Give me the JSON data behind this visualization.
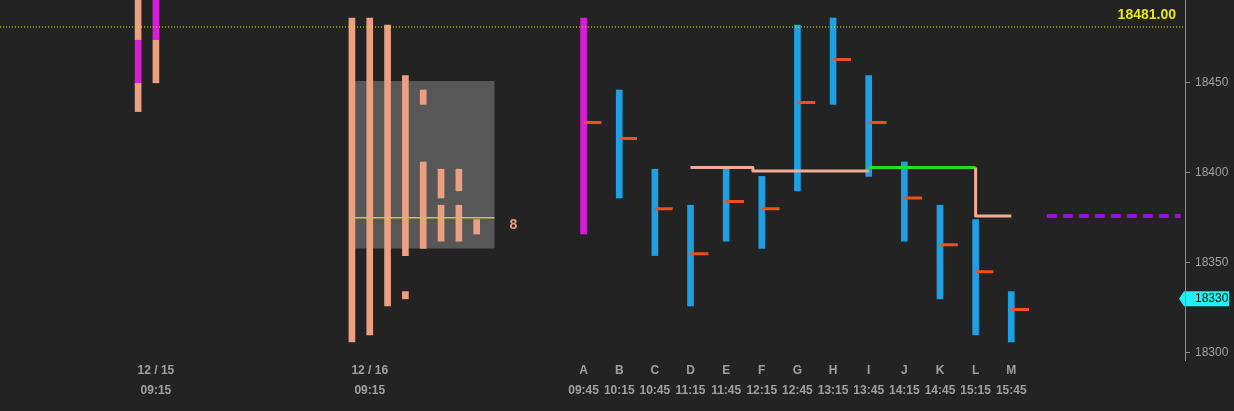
{
  "chart_data": {
    "type": "bar",
    "categories": [
      null,
      null,
      null,
      null,
      null,
      null,
      null,
      null,
      null,
      null,
      null,
      null,
      null,
      null,
      null,
      null,
      null,
      "12 / 15\n09:15",
      null,
      null,
      null,
      null,
      null,
      null,
      null,
      null,
      null,
      null,
      null,
      null,
      null,
      null,
      null,
      null,
      null,
      null,
      null,
      null,
      null,
      null,
      null,
      "12 / 16\n09:15",
      null,
      null,
      null,
      null,
      null,
      null,
      null,
      null,
      null,
      null,
      null,
      null,
      null,
      null,
      null,
      null,
      null,
      null,
      null,
      null,
      null,
      null,
      null,
      "A\n09:45",
      null,
      null,
      null,
      "B\n10:15",
      null,
      null,
      null,
      "C\n10:45",
      null,
      null,
      null,
      "D\n11:15",
      null,
      null,
      null,
      "E\n11:45",
      null,
      null,
      null,
      "F\n12:15",
      null,
      null,
      null,
      "G\n12:45",
      null,
      null,
      null,
      "H\n13:15",
      null,
      null,
      null,
      "I\n13:45",
      null,
      null,
      null,
      "J\n14:15",
      null,
      null,
      null,
      "K\n14:45",
      null,
      null,
      null,
      "L\n15:15",
      null,
      null,
      null,
      "M\n15:45",
      null,
      null,
      null,
      null,
      null,
      null,
      null,
      null,
      null,
      null,
      null,
      null,
      null,
      null,
      null,
      null,
      null,
      null,
      null
    ],
    "ylim": [
      18296,
      18496
    ],
    "yticks": [
      18300,
      18330,
      18350,
      18400,
      18450
    ],
    "series": [
      {
        "values": [
          null,
          null,
          null,
          null,
          null,
          null,
          null,
          null,
          null,
          null,
          null,
          null,
          null,
          null,
          null,
          22,
          null,
          22,
          null,
          null,
          null,
          null,
          null,
          null,
          null,
          null,
          null,
          null,
          null,
          null,
          null,
          null,
          null,
          null,
          null,
          null,
          null,
          null,
          null,
          180,
          null,
          176,
          null,
          156,
          null,
          100,
          null,
          8,
          null,
          16,
          null,
          12,
          null,
          8,
          null,
          null,
          null,
          null,
          null,
          null,
          null,
          null,
          null,
          null,
          null,
          120,
          null,
          null,
          null,
          60,
          null,
          null,
          null,
          48,
          null,
          null,
          null,
          56,
          null,
          null,
          null,
          40,
          null,
          null,
          null,
          40,
          null,
          null,
          null,
          92,
          null,
          null,
          null,
          48,
          null,
          null,
          null,
          56,
          null,
          null,
          null,
          44,
          null,
          null,
          null,
          52,
          null,
          null,
          null,
          64,
          null,
          null,
          null,
          28,
          null,
          null,
          null,
          null,
          null,
          null,
          null,
          null,
          null,
          null,
          null,
          null,
          null,
          null,
          null,
          null,
          null,
          null,
          null
        ],
        "base": [
          null,
          null,
          null,
          null,
          null,
          null,
          null,
          null,
          null,
          null,
          null,
          null,
          null,
          null,
          null,
          18474,
          null,
          18474,
          null,
          null,
          null,
          null,
          null,
          null,
          null,
          null,
          null,
          null,
          null,
          null,
          null,
          null,
          null,
          null,
          null,
          null,
          null,
          null,
          null,
          18306,
          null,
          18310,
          null,
          18326,
          null,
          18354,
          null,
          18438,
          null,
          18386,
          null,
          18390,
          null,
          18366,
          null,
          null,
          null,
          null,
          null,
          null,
          null,
          null,
          null,
          null,
          null,
          18366,
          null,
          null,
          null,
          18386,
          null,
          null,
          null,
          18354,
          null,
          null,
          null,
          18326,
          null,
          null,
          null,
          18362,
          null,
          null,
          null,
          18358,
          null,
          null,
          null,
          18390,
          null,
          null,
          null,
          18438,
          null,
          null,
          null,
          18398,
          null,
          null,
          null,
          18362,
          null,
          null,
          null,
          18330,
          null,
          null,
          null,
          18310,
          null,
          null,
          null,
          18306,
          null,
          null,
          null,
          null,
          null,
          null,
          null,
          null,
          null,
          null,
          null,
          null,
          null,
          null,
          null,
          null,
          null,
          null,
          null
        ],
        "colors": [
          null,
          null,
          null,
          null,
          null,
          null,
          null,
          null,
          null,
          null,
          null,
          null,
          null,
          null,
          null,
          "#eca082",
          null,
          "#d81cd8",
          null,
          null,
          null,
          null,
          null,
          null,
          null,
          null,
          null,
          null,
          null,
          null,
          null,
          null,
          null,
          null,
          null,
          null,
          null,
          null,
          null,
          "#eca082",
          null,
          "#eca082",
          null,
          "#eca082",
          null,
          "#eca082",
          null,
          "#eca082",
          null,
          "#eca082",
          null,
          "#eca082",
          null,
          "#eca082",
          null,
          null,
          null,
          null,
          null,
          null,
          null,
          null,
          null,
          null,
          null,
          "#d81cd8",
          null,
          null,
          null,
          "#1ea0e2",
          null,
          null,
          null,
          "#1ea0e2",
          null,
          null,
          null,
          "#1ea0e2",
          null,
          null,
          null,
          "#1ea0e2",
          null,
          null,
          null,
          "#1ea0e2",
          null,
          null,
          null,
          "#1ea0e2",
          null,
          null,
          null,
          "#1ea0e2",
          null,
          null,
          null,
          "#1ea0e2",
          null,
          null,
          null,
          "#1ea0e2",
          null,
          null,
          null,
          "#1ea0e2",
          null,
          null,
          null,
          "#1ea0e2",
          null,
          null,
          null,
          "#1ea0e2",
          null,
          null,
          null,
          null,
          null,
          null,
          null,
          null,
          null,
          null,
          null,
          null,
          null,
          null,
          null,
          null,
          null,
          null,
          null
        ]
      },
      {
        "values": [
          null,
          null,
          null,
          null,
          null,
          null,
          null,
          null,
          null,
          null,
          null,
          null,
          null,
          null,
          null,
          24,
          null,
          24,
          null,
          null,
          null,
          null,
          null,
          null,
          null,
          null,
          null,
          null,
          null,
          null,
          null,
          null,
          null,
          null,
          null,
          null,
          null,
          null,
          null,
          null,
          null,
          null,
          null,
          null,
          null,
          4,
          null,
          48,
          null,
          20,
          null,
          20,
          null,
          null,
          null,
          null,
          null,
          null,
          null,
          null,
          null,
          null,
          null,
          null,
          null,
          null,
          null,
          null,
          null,
          null,
          null,
          null,
          null,
          null,
          null,
          null,
          null,
          null,
          null,
          null,
          null,
          null,
          null,
          null,
          null,
          null,
          null,
          null,
          null,
          null,
          null,
          null,
          null,
          null,
          null,
          null,
          null,
          null,
          null,
          null,
          null,
          null,
          null,
          null,
          null,
          null,
          null,
          null,
          null,
          null,
          null,
          null,
          null,
          null,
          null,
          null,
          null,
          null,
          null,
          null,
          null,
          null,
          null,
          null,
          null,
          null,
          null,
          null,
          null,
          null,
          null,
          null,
          null
        ],
        "base": [
          null,
          null,
          null,
          null,
          null,
          null,
          null,
          null,
          null,
          null,
          null,
          null,
          null,
          null,
          null,
          18450,
          null,
          18450,
          null,
          null,
          null,
          null,
          null,
          null,
          null,
          null,
          null,
          null,
          null,
          null,
          null,
          null,
          null,
          null,
          null,
          null,
          null,
          null,
          null,
          null,
          null,
          null,
          null,
          null,
          null,
          18330,
          null,
          18358,
          null,
          18362,
          null,
          18362,
          null,
          null,
          null,
          null,
          null,
          null,
          null,
          null,
          null,
          null,
          null,
          null,
          null,
          null,
          null,
          null,
          null,
          null,
          null,
          null,
          null,
          null,
          null,
          null,
          null,
          null,
          null,
          null,
          null,
          null,
          null,
          null,
          null,
          null,
          null,
          null,
          null,
          null,
          null,
          null,
          null,
          null,
          null,
          null,
          null,
          null,
          null,
          null,
          null,
          null,
          null,
          null,
          null,
          null,
          null,
          null,
          null,
          null,
          null,
          null,
          null,
          null,
          null,
          null,
          null,
          null,
          null,
          null,
          null,
          null,
          null,
          null,
          null,
          null,
          null,
          null,
          null,
          null,
          null,
          null,
          null
        ],
        "colors": [
          null,
          null,
          null,
          null,
          null,
          null,
          null,
          null,
          null,
          null,
          null,
          null,
          null,
          null,
          null,
          "#d81cd8",
          null,
          "#eca082",
          null,
          null,
          null,
          null,
          null,
          null,
          null,
          null,
          null,
          null,
          null,
          null,
          null,
          null,
          null,
          null,
          null,
          null,
          null,
          null,
          null,
          null,
          null,
          null,
          null,
          null,
          null,
          "#eca082",
          null,
          "#eca082",
          null,
          "#eca082",
          null,
          "#eca082",
          null,
          null,
          null,
          null,
          null,
          null,
          null,
          null,
          null,
          null,
          null,
          null,
          null,
          null,
          null,
          null,
          null,
          null,
          null,
          null,
          null,
          null,
          null,
          null,
          null,
          null,
          null,
          null,
          null,
          null,
          null,
          null,
          null,
          null,
          null,
          null,
          null,
          null,
          null,
          null,
          null,
          null,
          null,
          null,
          null,
          null,
          null,
          null,
          null,
          null,
          null,
          null,
          null,
          null,
          null,
          null,
          null,
          null,
          null,
          null,
          null,
          null,
          null,
          null,
          null,
          null,
          null,
          null,
          null,
          null,
          null,
          null,
          null,
          null,
          null,
          null,
          null,
          null,
          null,
          null,
          null
        ]
      },
      {
        "values": [
          null,
          null,
          null,
          null,
          null,
          null,
          null,
          null,
          null,
          null,
          null,
          null,
          null,
          null,
          null,
          16,
          null,
          null,
          null,
          null,
          null,
          null,
          null,
          null,
          null,
          null,
          null,
          null,
          null,
          null,
          null,
          null,
          null,
          null,
          null,
          null,
          null,
          null,
          null,
          null,
          null,
          null,
          null,
          null,
          null,
          null,
          null,
          null,
          null,
          null,
          null,
          null,
          null,
          null,
          null,
          null,
          null,
          null,
          null,
          null,
          null,
          null,
          null,
          null,
          null,
          null,
          null,
          null,
          null,
          null,
          null,
          null,
          null,
          null,
          null,
          null,
          null,
          null,
          null,
          null,
          null,
          null,
          null,
          null,
          null,
          null,
          null,
          null,
          null,
          null,
          null,
          null,
          null,
          null,
          null,
          null,
          null,
          null,
          null,
          null,
          null,
          null,
          null,
          null,
          null,
          null,
          null,
          null,
          null,
          null,
          null,
          null,
          null,
          null,
          null,
          null,
          null,
          null,
          null,
          null,
          null,
          null,
          null,
          null,
          null,
          null,
          null,
          null,
          null,
          null,
          null,
          null,
          null
        ],
        "base": [
          null,
          null,
          null,
          null,
          null,
          null,
          null,
          null,
          null,
          null,
          null,
          null,
          null,
          null,
          null,
          18434,
          null,
          null,
          null,
          null,
          null,
          null,
          null,
          null,
          null,
          null,
          null,
          null,
          null,
          null,
          null,
          null,
          null,
          null,
          null,
          null,
          null,
          null,
          null,
          null,
          null,
          null,
          null,
          null,
          null,
          null,
          null,
          null,
          null,
          null,
          null,
          null,
          null,
          null,
          null,
          null,
          null,
          null,
          null,
          null,
          null,
          null,
          null,
          null,
          null,
          null,
          null,
          null,
          null,
          null,
          null,
          null,
          null,
          null,
          null,
          null,
          null,
          null,
          null,
          null,
          null,
          null,
          null,
          null,
          null,
          null,
          null,
          null,
          null,
          null,
          null,
          null,
          null,
          null,
          null,
          null,
          null,
          null,
          null,
          null,
          null,
          null,
          null,
          null,
          null,
          null,
          null,
          null,
          null,
          null,
          null,
          null,
          null,
          null,
          null,
          null,
          null,
          null,
          null,
          null,
          null,
          null,
          null,
          null,
          null,
          null,
          null,
          null,
          null,
          null,
          null,
          null,
          null
        ],
        "colors": [
          null,
          null,
          null,
          null,
          null,
          null,
          null,
          null,
          null,
          null,
          null,
          null,
          null,
          null,
          null,
          "#eca082",
          null,
          null,
          null,
          null,
          null,
          null,
          null,
          null,
          null,
          null,
          null,
          null,
          null,
          null,
          null,
          null,
          null,
          null,
          null,
          null,
          null,
          null,
          null,
          null,
          null,
          null,
          null,
          null,
          null,
          null,
          null,
          null,
          null,
          null,
          null,
          null,
          null,
          null,
          null,
          null,
          null,
          null,
          null,
          null,
          null,
          null,
          null,
          null,
          null,
          null,
          null,
          null,
          null,
          null,
          null,
          null,
          null,
          null,
          null,
          null,
          null,
          null,
          null,
          null,
          null,
          null,
          null,
          null,
          null,
          null,
          null,
          null,
          null,
          null,
          null,
          null,
          null,
          null,
          null,
          null,
          null,
          null,
          null,
          null,
          null,
          null,
          null,
          null,
          null,
          null,
          null,
          null,
          null,
          null,
          null,
          null,
          null,
          null,
          null,
          null,
          null,
          null,
          null,
          null,
          null,
          null,
          null,
          null,
          null,
          null,
          null,
          null,
          null,
          null,
          null,
          null,
          null
        ]
      },
      {
        "type": "line",
        "color": "#f0501a",
        "values": [
          null,
          null,
          null,
          null,
          null,
          null,
          null,
          null,
          null,
          null,
          null,
          null,
          null,
          null,
          null,
          null,
          null,
          null,
          null,
          null,
          null,
          null,
          null,
          null,
          null,
          null,
          null,
          null,
          null,
          null,
          null,
          null,
          null,
          null,
          null,
          null,
          null,
          null,
          null,
          null,
          null,
          null,
          null,
          null,
          null,
          null,
          null,
          null,
          null,
          null,
          null,
          null,
          null,
          null,
          null,
          null,
          null,
          null,
          null,
          null,
          null,
          null,
          null,
          null,
          null,
          18428,
          18428,
          18428,
          null,
          18419,
          18419,
          18419,
          null,
          18380,
          18380,
          18380,
          null,
          18355,
          18355,
          18355,
          null,
          18384,
          18384,
          18384,
          null,
          18380,
          18380,
          18380,
          null,
          18439,
          18439,
          18439,
          null,
          18463,
          18463,
          18463,
          null,
          18428,
          18428,
          18428,
          null,
          18386,
          18386,
          18386,
          null,
          18360,
          18360,
          18360,
          null,
          18345,
          18345,
          18345,
          null,
          18324,
          18324,
          18324,
          null,
          null,
          null,
          null,
          null,
          null,
          null,
          null,
          null,
          null,
          null,
          null,
          null,
          null,
          null,
          null,
          null
        ]
      },
      {
        "type": "step",
        "color": "#f4ac94",
        "values": [
          null,
          null,
          null,
          null,
          null,
          null,
          null,
          null,
          null,
          null,
          null,
          null,
          null,
          null,
          null,
          null,
          null,
          null,
          null,
          null,
          null,
          null,
          null,
          null,
          null,
          null,
          null,
          null,
          null,
          null,
          null,
          null,
          null,
          null,
          null,
          null,
          null,
          null,
          null,
          null,
          null,
          null,
          null,
          null,
          null,
          null,
          null,
          null,
          null,
          null,
          null,
          null,
          null,
          null,
          null,
          null,
          null,
          null,
          null,
          null,
          null,
          null,
          null,
          null,
          null,
          null,
          null,
          null,
          null,
          null,
          null,
          null,
          null,
          null,
          null,
          null,
          null,
          18403,
          18403,
          18403,
          18403,
          18403,
          18403,
          18403,
          18403,
          18401,
          18401,
          18401,
          18401,
          18401,
          18401,
          18401,
          18401,
          18401,
          18401,
          18401,
          18401,
          18401,
          null,
          null,
          null,
          null,
          null,
          null,
          null,
          null,
          null,
          null,
          null,
          18403,
          18376,
          18376,
          18376,
          18376,
          null,
          null,
          null,
          null,
          null,
          null,
          null,
          null,
          null,
          null,
          null,
          null,
          null,
          null,
          null,
          null,
          null,
          null,
          null
        ]
      },
      {
        "type": "line",
        "color": "#22e022",
        "values": [
          null,
          null,
          null,
          null,
          null,
          null,
          null,
          null,
          null,
          null,
          null,
          null,
          null,
          null,
          null,
          null,
          null,
          null,
          null,
          null,
          null,
          null,
          null,
          null,
          null,
          null,
          null,
          null,
          null,
          null,
          null,
          null,
          null,
          null,
          null,
          null,
          null,
          null,
          null,
          null,
          null,
          null,
          null,
          null,
          null,
          null,
          null,
          null,
          null,
          null,
          null,
          null,
          null,
          null,
          null,
          null,
          null,
          null,
          null,
          null,
          null,
          null,
          null,
          null,
          null,
          null,
          null,
          null,
          null,
          null,
          null,
          null,
          null,
          null,
          null,
          null,
          null,
          null,
          null,
          null,
          null,
          null,
          null,
          null,
          null,
          null,
          null,
          null,
          null,
          null,
          null,
          null,
          null,
          null,
          null,
          null,
          null,
          18403,
          18403,
          18403,
          18403,
          18403,
          18403,
          18403,
          18403,
          18403,
          18403,
          18403,
          18403,
          18403,
          null,
          null,
          null,
          null,
          null,
          null,
          null,
          null,
          null,
          null,
          null,
          null,
          null,
          null,
          null,
          null,
          null,
          null,
          null,
          null,
          null,
          null,
          null
        ]
      },
      {
        "type": "line",
        "color": "#c8c84a",
        "values": [
          null,
          null,
          null,
          null,
          null,
          null,
          null,
          null,
          null,
          null,
          null,
          null,
          null,
          null,
          null,
          null,
          null,
          null,
          null,
          null,
          null,
          null,
          null,
          null,
          null,
          null,
          null,
          null,
          null,
          null,
          null,
          null,
          null,
          null,
          null,
          null,
          null,
          null,
          null,
          18375,
          18375,
          18375,
          18375,
          18375,
          18375,
          18375,
          18375,
          18375,
          18375,
          18375,
          18375,
          18375,
          18375,
          18375,
          18375,
          18375,
          null,
          null,
          null,
          null,
          null,
          null,
          null,
          null,
          null,
          null,
          null,
          null,
          null,
          null,
          null,
          null,
          null,
          null,
          null,
          null,
          null,
          null,
          null,
          null,
          null,
          null,
          null,
          null,
          null,
          null,
          null,
          null,
          null,
          null,
          null,
          null,
          null,
          null,
          null,
          null,
          null,
          null,
          null,
          null,
          null,
          null,
          null,
          null,
          null,
          null,
          null,
          null,
          null,
          null,
          null,
          null,
          null,
          null,
          null,
          null,
          null,
          null,
          null,
          null,
          null,
          null,
          null,
          null,
          null,
          null,
          null,
          null,
          null,
          null,
          null,
          null,
          null
        ],
        "lower": [
          null,
          null,
          null,
          null,
          null,
          null,
          null,
          null,
          null,
          null,
          null,
          null,
          null,
          null,
          null,
          null,
          null,
          null,
          null,
          null,
          null,
          null,
          null,
          null,
          null,
          null,
          null,
          null,
          null,
          null,
          null,
          null,
          null,
          null,
          null,
          null,
          null,
          null,
          null,
          18358,
          18358,
          18358,
          18358,
          18358,
          18358,
          18358,
          18358,
          18358,
          18358,
          18358,
          18358,
          18358,
          18358,
          18358,
          18358,
          18358,
          null,
          null,
          null,
          null,
          null,
          null,
          null,
          null,
          null,
          null,
          null,
          null,
          null,
          null,
          null,
          null,
          null,
          null,
          null,
          null,
          null,
          null,
          null,
          null,
          null,
          null,
          null,
          null,
          null,
          null,
          null,
          null,
          null,
          null,
          null,
          null,
          null,
          null,
          null,
          null,
          null,
          null,
          null,
          null,
          null,
          null,
          null,
          null,
          null,
          null,
          null,
          null,
          null,
          null,
          null,
          null,
          null,
          null,
          null,
          null,
          null,
          null,
          null,
          null,
          null,
          null,
          null,
          null,
          null,
          null,
          null,
          null,
          null,
          null,
          null,
          null,
          null
        ],
        "upper": [
          null,
          null,
          null,
          null,
          null,
          null,
          null,
          null,
          null,
          null,
          null,
          null,
          null,
          null,
          null,
          null,
          null,
          null,
          null,
          null,
          null,
          null,
          null,
          null,
          null,
          null,
          null,
          null,
          null,
          null,
          null,
          null,
          null,
          null,
          null,
          null,
          null,
          null,
          null,
          18451,
          18451,
          18451,
          18451,
          18451,
          18451,
          18451,
          18451,
          18451,
          18451,
          18451,
          18451,
          18451,
          18451,
          18451,
          18451,
          18451,
          null,
          null,
          null,
          null,
          null,
          null,
          null,
          null,
          null,
          null,
          null,
          null,
          null,
          null,
          null,
          null,
          null,
          null,
          null,
          null,
          null,
          null,
          null,
          null,
          null,
          null,
          null,
          null,
          null,
          null,
          null,
          null,
          null,
          null,
          null,
          null,
          null,
          null,
          null,
          null,
          null,
          null,
          null,
          null,
          null,
          null,
          null,
          null,
          null,
          null,
          null,
          null,
          null,
          null,
          null,
          null,
          null,
          null,
          null,
          null,
          null,
          null,
          null,
          null,
          null,
          null,
          null,
          null,
          null,
          null,
          null,
          null,
          null,
          null,
          null,
          null,
          null
        ]
      },
      {
        "type": "line",
        "color": "#9b12d6",
        "line_style": "dashed",
        "values": [
          null,
          null,
          null,
          null,
          null,
          null,
          null,
          null,
          null,
          null,
          null,
          null,
          null,
          null,
          null,
          null,
          null,
          null,
          null,
          null,
          null,
          null,
          null,
          null,
          null,
          null,
          null,
          null,
          null,
          null,
          null,
          null,
          null,
          null,
          null,
          null,
          null,
          null,
          null,
          null,
          null,
          null,
          null,
          null,
          null,
          null,
          null,
          null,
          null,
          null,
          null,
          null,
          null,
          null,
          null,
          null,
          null,
          null,
          null,
          null,
          null,
          null,
          null,
          null,
          null,
          null,
          null,
          null,
          null,
          null,
          null,
          null,
          null,
          null,
          null,
          null,
          null,
          null,
          null,
          null,
          null,
          null,
          null,
          null,
          null,
          null,
          null,
          null,
          null,
          null,
          null,
          null,
          null,
          null,
          null,
          null,
          null,
          null,
          null,
          null,
          null,
          null,
          null,
          null,
          null,
          null,
          null,
          null,
          null,
          null,
          null,
          null,
          null,
          null,
          null,
          null,
          null,
          18376,
          18376,
          18376,
          18376,
          18376,
          18376,
          18376,
          18376,
          18376,
          18376,
          18376,
          18376,
          18376,
          18376,
          18376,
          18376
        ]
      }
    ],
    "ref_lines": [
      {
        "axis": "y",
        "value": 18481,
        "label": "18481.00",
        "color": "#e8e81e",
        "line_style": "dotted"
      }
    ],
    "annotations": [
      "8"
    ]
  }
}
